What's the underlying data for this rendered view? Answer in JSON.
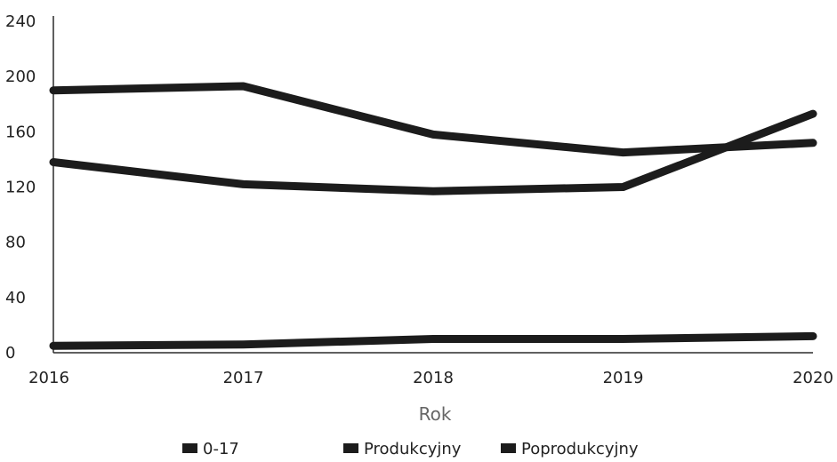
{
  "chart_data": {
    "type": "line",
    "title": "",
    "xlabel": "Rok",
    "ylabel": "",
    "x": [
      "2016",
      "2017",
      "2018",
      "2019",
      "2020"
    ],
    "ylim": [
      0,
      240
    ],
    "yticks": [
      "0",
      "40",
      "80",
      "120",
      "160",
      "200",
      "240"
    ],
    "grid": false,
    "legend_position": "bottom",
    "series": [
      {
        "name": "0-17",
        "values": [
          5,
          6,
          10,
          10,
          12
        ],
        "color": "#1c1c1c"
      },
      {
        "name": "Produkcyjny",
        "values": [
          190,
          193,
          158,
          145,
          152
        ],
        "color": "#1c1c1c"
      },
      {
        "name": "Poprodukcyjny",
        "values": [
          138,
          122,
          117,
          120,
          173
        ],
        "color": "#1c1c1c"
      }
    ]
  }
}
